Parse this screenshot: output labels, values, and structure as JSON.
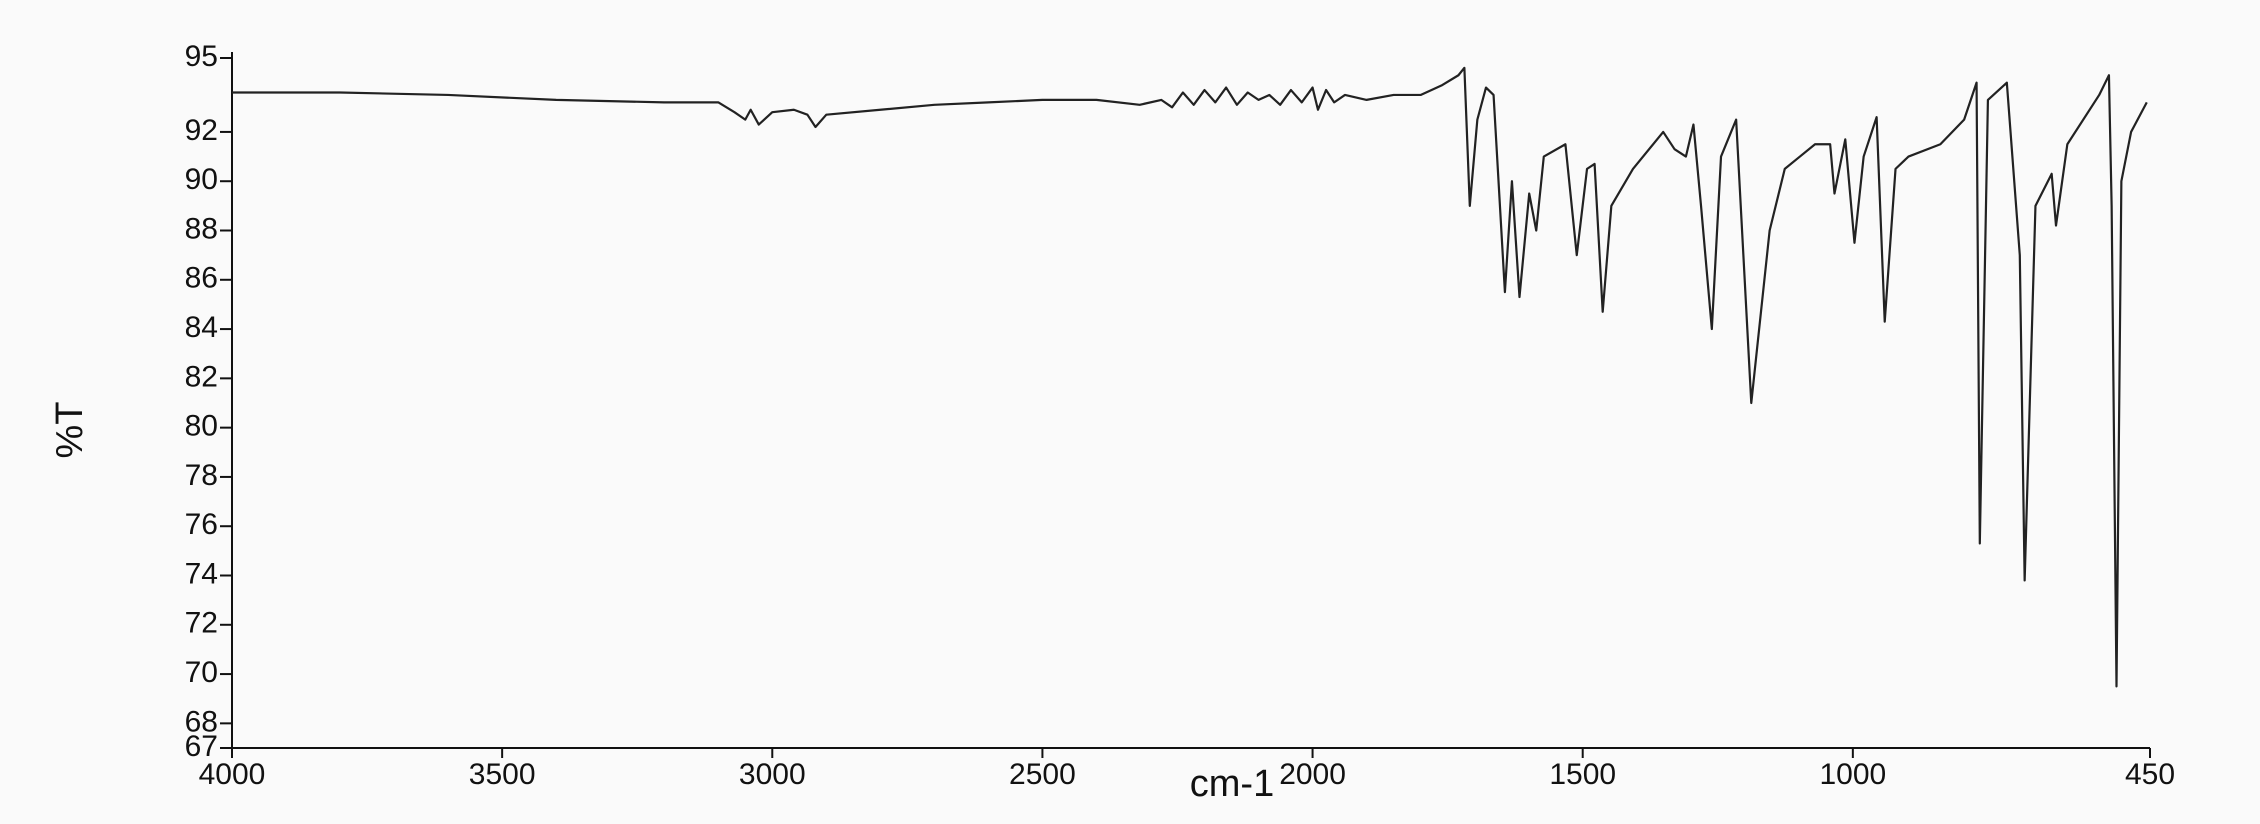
{
  "chart_data": {
    "type": "line",
    "xlabel": "cm-1",
    "ylabel": "%T",
    "color": "#222222",
    "xlim": [
      4000,
      450
    ],
    "ylim": [
      67,
      95
    ],
    "xticks": [
      4000,
      3500,
      3000,
      2500,
      2000,
      1500,
      1000,
      450
    ],
    "yticks": [
      67,
      68,
      70,
      72,
      74,
      76,
      78,
      80,
      82,
      84,
      86,
      88,
      90,
      92,
      95
    ],
    "x": [
      4000,
      3800,
      3600,
      3400,
      3200,
      3100,
      3070,
      3050,
      3040,
      3025,
      3000,
      2960,
      2935,
      2920,
      2900,
      2800,
      2700,
      2600,
      2500,
      2400,
      2320,
      2280,
      2260,
      2240,
      2220,
      2200,
      2180,
      2160,
      2140,
      2120,
      2100,
      2080,
      2060,
      2040,
      2020,
      2000,
      1990,
      1975,
      1960,
      1940,
      1900,
      1850,
      1800,
      1760,
      1730,
      1719,
      1709,
      1695,
      1679,
      1665,
      1644,
      1631,
      1617,
      1599,
      1586,
      1572,
      1532,
      1511,
      1492,
      1478,
      1463,
      1447,
      1407,
      1351,
      1330,
      1309,
      1295,
      1281,
      1261,
      1244,
      1216,
      1188,
      1154,
      1126,
      1098,
      1070,
      1042,
      1034,
      1014,
      997,
      980,
      956,
      941,
      921,
      897,
      838,
      794,
      771,
      765,
      750,
      715,
      691,
      682,
      662,
      632,
      624,
      603,
      544,
      526,
      521,
      512,
      503,
      485,
      456
    ],
    "values": [
      93.6,
      93.6,
      93.5,
      93.3,
      93.2,
      93.2,
      92.8,
      92.5,
      92.9,
      92.3,
      92.8,
      92.9,
      92.7,
      92.2,
      92.7,
      92.9,
      93.1,
      93.2,
      93.3,
      93.3,
      93.1,
      93.3,
      93.0,
      93.6,
      93.1,
      93.7,
      93.2,
      93.8,
      93.1,
      93.6,
      93.3,
      93.5,
      93.1,
      93.7,
      93.2,
      93.8,
      92.9,
      93.7,
      93.2,
      93.5,
      93.3,
      93.5,
      93.5,
      93.9,
      94.3,
      94.6,
      89,
      92.5,
      93.8,
      93.5,
      85.5,
      90,
      85.3,
      89.5,
      88,
      91,
      91.5,
      87,
      90.5,
      90.7,
      84.7,
      89,
      90.5,
      92,
      91.3,
      91,
      92.3,
      89,
      84,
      91,
      92.5,
      81,
      88,
      90.5,
      91,
      91.5,
      91.5,
      89.5,
      91.7,
      87.5,
      91,
      92.6,
      84.3,
      90.5,
      91,
      91.5,
      92.5,
      94,
      75.3,
      93.3,
      94,
      87,
      73.8,
      89,
      90.3,
      88.2,
      91.5,
      93.5,
      94.3,
      89,
      69.5,
      90,
      92,
      93.2
    ]
  }
}
